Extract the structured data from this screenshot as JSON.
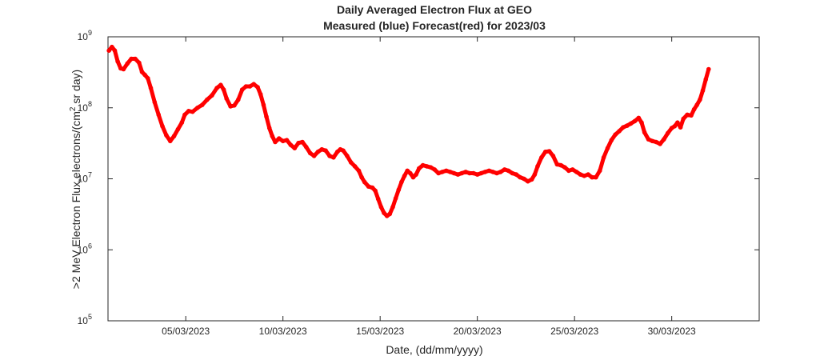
{
  "chart_data": {
    "type": "scatter",
    "title": "Daily Averaged Electron Flux at GEO",
    "subtitle": "Measured (blue) Forecast(red) for 2023/03",
    "xlabel": "Date, (dd/mm/yyyy)",
    "ylabel_main": ">2 MeV Electron Flux,electrons/(cm",
    "ylabel_sup": "2",
    "ylabel_tail": " sr day)",
    "x_unit": "day of March 2023",
    "xlim": [
      1,
      34.5
    ],
    "ylim": [
      100000,
      1000000000
    ],
    "y_scale": "log",
    "grid": false,
    "x_ticks": [
      {
        "value": 5,
        "label": "05/03/2023"
      },
      {
        "value": 10,
        "label": "10/03/2023"
      },
      {
        "value": 15,
        "label": "15/03/2023"
      },
      {
        "value": 20,
        "label": "20/03/2023"
      },
      {
        "value": 25,
        "label": "25/03/2023"
      },
      {
        "value": 30,
        "label": "30/03/2023"
      }
    ],
    "y_ticks": [
      {
        "value": 100000,
        "base": "10",
        "exp": "5"
      },
      {
        "value": 1000000,
        "base": "10",
        "exp": "6"
      },
      {
        "value": 10000000,
        "base": "10",
        "exp": "7"
      },
      {
        "value": 100000000,
        "base": "10",
        "exp": "8"
      },
      {
        "value": 1000000000,
        "base": "10",
        "exp": "9"
      }
    ],
    "series": [
      {
        "color": "#ff0000",
        "points": [
          [
            1.05,
            640000000
          ],
          [
            1.2,
            720000000
          ],
          [
            1.35,
            640000000
          ],
          [
            1.5,
            450000000
          ],
          [
            1.65,
            360000000
          ],
          [
            1.8,
            350000000
          ],
          [
            2.0,
            420000000
          ],
          [
            2.2,
            490000000
          ],
          [
            2.4,
            490000000
          ],
          [
            2.6,
            430000000
          ],
          [
            2.75,
            320000000
          ],
          [
            2.9,
            290000000
          ],
          [
            3.05,
            260000000
          ],
          [
            3.2,
            190000000
          ],
          [
            3.4,
            120000000
          ],
          [
            3.6,
            80000000
          ],
          [
            3.8,
            55000000
          ],
          [
            4.0,
            41000000
          ],
          [
            4.2,
            34000000
          ],
          [
            4.4,
            40000000
          ],
          [
            4.6,
            50000000
          ],
          [
            4.8,
            62000000
          ],
          [
            4.95,
            80000000
          ],
          [
            5.15,
            90000000
          ],
          [
            5.35,
            88000000
          ],
          [
            5.6,
            100000000
          ],
          [
            5.85,
            110000000
          ],
          [
            6.1,
            130000000
          ],
          [
            6.35,
            150000000
          ],
          [
            6.6,
            190000000
          ],
          [
            6.8,
            210000000
          ],
          [
            6.95,
            180000000
          ],
          [
            7.1,
            135000000
          ],
          [
            7.3,
            105000000
          ],
          [
            7.5,
            108000000
          ],
          [
            7.7,
            130000000
          ],
          [
            7.9,
            180000000
          ],
          [
            8.1,
            200000000
          ],
          [
            8.3,
            200000000
          ],
          [
            8.5,
            215000000
          ],
          [
            8.7,
            195000000
          ],
          [
            8.85,
            155000000
          ],
          [
            9.0,
            110000000
          ],
          [
            9.15,
            75000000
          ],
          [
            9.3,
            52000000
          ],
          [
            9.45,
            40000000
          ],
          [
            9.6,
            33000000
          ],
          [
            9.8,
            37000000
          ],
          [
            10.0,
            34000000
          ],
          [
            10.2,
            35000000
          ],
          [
            10.4,
            30000000
          ],
          [
            10.6,
            27000000
          ],
          [
            10.8,
            32000000
          ],
          [
            11.0,
            33000000
          ],
          [
            11.2,
            28000000
          ],
          [
            11.4,
            23000000
          ],
          [
            11.6,
            21000000
          ],
          [
            11.8,
            24000000
          ],
          [
            12.0,
            26000000
          ],
          [
            12.2,
            25000000
          ],
          [
            12.4,
            21000000
          ],
          [
            12.6,
            20000000
          ],
          [
            12.8,
            24000000
          ],
          [
            12.95,
            26000000
          ],
          [
            13.1,
            25000000
          ],
          [
            13.3,
            21000000
          ],
          [
            13.5,
            17000000
          ],
          [
            13.7,
            15000000
          ],
          [
            13.9,
            13000000
          ],
          [
            14.05,
            10500000
          ],
          [
            14.2,
            9000000
          ],
          [
            14.4,
            7800000
          ],
          [
            14.6,
            7500000
          ],
          [
            14.75,
            6800000
          ],
          [
            14.9,
            5200000
          ],
          [
            15.05,
            4000000
          ],
          [
            15.2,
            3300000
          ],
          [
            15.35,
            3000000
          ],
          [
            15.5,
            3200000
          ],
          [
            15.65,
            4000000
          ],
          [
            15.8,
            5300000
          ],
          [
            15.95,
            7000000
          ],
          [
            16.1,
            9000000
          ],
          [
            16.25,
            11000000
          ],
          [
            16.4,
            13000000
          ],
          [
            16.55,
            12000000
          ],
          [
            16.7,
            10500000
          ],
          [
            16.85,
            11500000
          ],
          [
            17.0,
            14000000
          ],
          [
            17.2,
            15500000
          ],
          [
            17.4,
            15000000
          ],
          [
            17.6,
            14500000
          ],
          [
            17.8,
            13500000
          ],
          [
            18.0,
            12000000
          ],
          [
            18.2,
            12500000
          ],
          [
            18.4,
            13000000
          ],
          [
            18.6,
            12500000
          ],
          [
            18.8,
            12000000
          ],
          [
            19.0,
            11500000
          ],
          [
            19.2,
            12000000
          ],
          [
            19.4,
            12500000
          ],
          [
            19.6,
            12000000
          ],
          [
            19.8,
            12000000
          ],
          [
            20.0,
            11500000
          ],
          [
            20.2,
            12000000
          ],
          [
            20.4,
            12500000
          ],
          [
            20.6,
            13000000
          ],
          [
            20.8,
            12500000
          ],
          [
            21.0,
            12000000
          ],
          [
            21.2,
            12500000
          ],
          [
            21.4,
            13500000
          ],
          [
            21.6,
            13000000
          ],
          [
            21.8,
            12000000
          ],
          [
            22.0,
            11500000
          ],
          [
            22.2,
            10500000
          ],
          [
            22.4,
            10000000
          ],
          [
            22.6,
            9200000
          ],
          [
            22.8,
            9800000
          ],
          [
            22.95,
            11500000
          ],
          [
            23.1,
            15000000
          ],
          [
            23.3,
            20000000
          ],
          [
            23.5,
            24000000
          ],
          [
            23.7,
            24500000
          ],
          [
            23.9,
            21000000
          ],
          [
            24.1,
            16000000
          ],
          [
            24.3,
            15500000
          ],
          [
            24.5,
            14500000
          ],
          [
            24.7,
            13000000
          ],
          [
            24.9,
            13500000
          ],
          [
            25.1,
            12500000
          ],
          [
            25.3,
            11500000
          ],
          [
            25.5,
            11000000
          ],
          [
            25.7,
            11500000
          ],
          [
            25.9,
            10500000
          ],
          [
            26.1,
            10500000
          ],
          [
            26.3,
            13000000
          ],
          [
            26.5,
            20000000
          ],
          [
            26.7,
            27000000
          ],
          [
            26.9,
            35000000
          ],
          [
            27.1,
            42000000
          ],
          [
            27.3,
            47000000
          ],
          [
            27.5,
            53000000
          ],
          [
            27.7,
            56000000
          ],
          [
            27.9,
            60000000
          ],
          [
            28.1,
            65000000
          ],
          [
            28.3,
            72000000
          ],
          [
            28.45,
            62000000
          ],
          [
            28.6,
            45000000
          ],
          [
            28.8,
            36000000
          ],
          [
            29.0,
            34000000
          ],
          [
            29.2,
            33000000
          ],
          [
            29.4,
            31000000
          ],
          [
            29.6,
            36000000
          ],
          [
            29.8,
            44000000
          ],
          [
            30.0,
            52000000
          ],
          [
            30.15,
            55000000
          ],
          [
            30.3,
            62000000
          ],
          [
            30.45,
            53000000
          ],
          [
            30.6,
            70000000
          ],
          [
            30.8,
            80000000
          ],
          [
            31.0,
            78000000
          ],
          [
            31.15,
            95000000
          ],
          [
            31.3,
            110000000
          ],
          [
            31.45,
            130000000
          ],
          [
            31.6,
            175000000
          ],
          [
            31.75,
            250000000
          ],
          [
            31.9,
            350000000
          ]
        ]
      }
    ]
  }
}
